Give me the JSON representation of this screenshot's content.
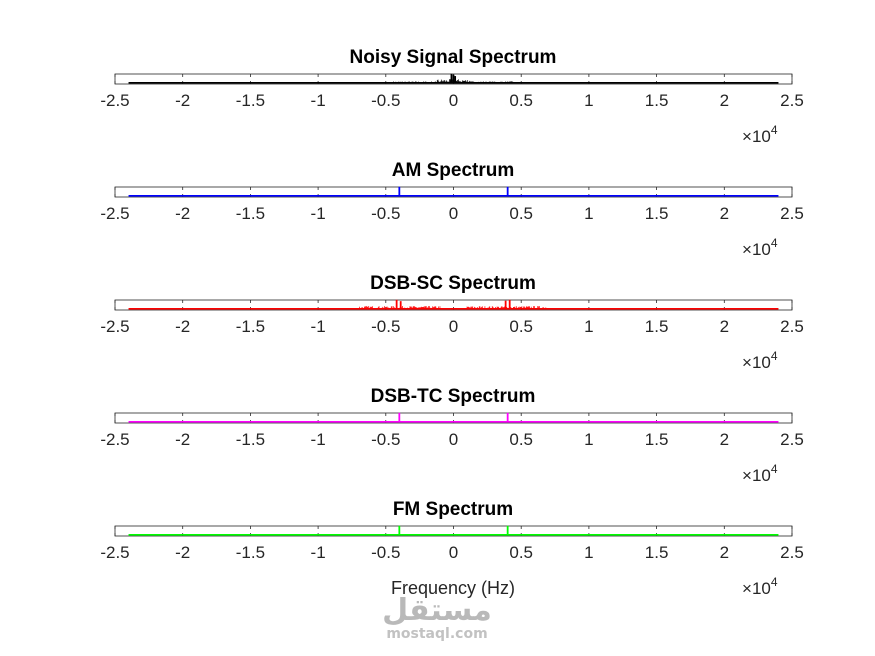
{
  "figure": {
    "x_tick_labels": [
      "-2.5",
      "-2",
      "-1.5",
      "-1",
      "-0.5",
      "0",
      "0.5",
      "1",
      "1.5",
      "2",
      "2.5"
    ],
    "x_multiplier": {
      "base": "10",
      "exponent": "4"
    },
    "xlabel": "Frequency (Hz)",
    "watermark": {
      "logo_text": "مستقل",
      "site": "mostaql.com"
    }
  },
  "chart_data": [
    {
      "type": "line",
      "title": "Noisy Signal Spectrum",
      "color": "#000000",
      "xlim": [
        -25000,
        25000
      ],
      "x_range_plotted": [
        -24000,
        24000
      ],
      "spikes": [
        {
          "x": -150,
          "height": 1.0
        },
        {
          "x": 0,
          "height": 0.9
        },
        {
          "x": 120,
          "height": 0.75
        }
      ],
      "noise": [
        {
          "x_from": -4500,
          "x_to": 4500,
          "level": 0.18
        },
        {
          "x_from": -1200,
          "x_to": 1200,
          "level": 0.45
        }
      ]
    },
    {
      "type": "line",
      "title": "AM Spectrum",
      "color": "#0000ff",
      "xlim": [
        -25000,
        25000
      ],
      "x_range_plotted": [
        -24000,
        24000
      ],
      "spikes": [
        {
          "x": -4000,
          "height": 1.0
        },
        {
          "x": 4000,
          "height": 1.0
        }
      ],
      "noise": []
    },
    {
      "type": "line",
      "title": "DSB-SC Spectrum",
      "color": "#ff0000",
      "xlim": [
        -25000,
        25000
      ],
      "x_range_plotted": [
        -24000,
        24000
      ],
      "spikes": [
        {
          "x": -4200,
          "height": 1.0
        },
        {
          "x": -3900,
          "height": 0.85
        },
        {
          "x": 3850,
          "height": 0.9
        },
        {
          "x": 4150,
          "height": 1.0
        }
      ],
      "noise": [
        {
          "x_from": -7000,
          "x_to": -1000,
          "level": 0.35
        },
        {
          "x_from": 1000,
          "x_to": 7000,
          "level": 0.35
        }
      ]
    },
    {
      "type": "line",
      "title": "DSB-TC Spectrum",
      "color": "#ff00ff",
      "xlim": [
        -25000,
        25000
      ],
      "x_range_plotted": [
        -24000,
        24000
      ],
      "spikes": [
        {
          "x": -4000,
          "height": 1.0
        },
        {
          "x": 4000,
          "height": 1.0
        }
      ],
      "noise": []
    },
    {
      "type": "line",
      "title": "FM Spectrum",
      "color": "#00ff00",
      "xlim": [
        -25000,
        25000
      ],
      "x_range_plotted": [
        -24000,
        24000
      ],
      "spikes": [
        {
          "x": -4000,
          "height": 1.0
        },
        {
          "x": 4000,
          "height": 1.0
        }
      ],
      "noise": []
    }
  ]
}
